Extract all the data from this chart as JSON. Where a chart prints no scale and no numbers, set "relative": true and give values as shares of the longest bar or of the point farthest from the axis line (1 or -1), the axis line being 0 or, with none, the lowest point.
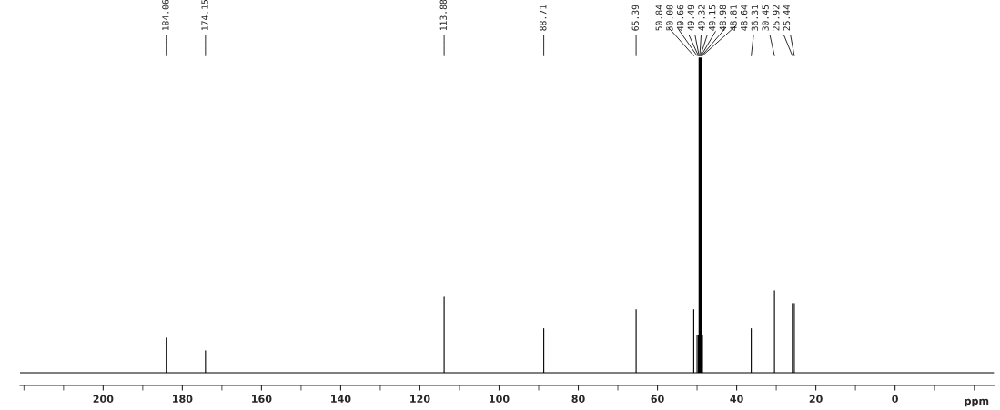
{
  "chart_data": {
    "type": "line",
    "relative": true,
    "xlabel": "ppm",
    "xlim": [
      221,
      -25
    ],
    "xticks": [
      200,
      180,
      160,
      140,
      120,
      100,
      80,
      60,
      40,
      20,
      0
    ],
    "tick_labels": "x",
    "grid": false,
    "legend": false,
    "marker": "none",
    "line_style": "solid",
    "series": [
      {
        "color": "#000000",
        "x": [
          221,
          184.06,
          184.06,
          184.06,
          174.15,
          174.15,
          174.15,
          113.88,
          113.88,
          113.88,
          88.71,
          88.71,
          88.71,
          65.39,
          65.39,
          65.39,
          50.84,
          50.84,
          50.84,
          50.0,
          50.0,
          50.0,
          49.66,
          49.66,
          49.66,
          49.49,
          49.49,
          49.49,
          49.32,
          49.32,
          49.32,
          49.15,
          49.15,
          49.15,
          48.98,
          48.98,
          48.98,
          48.81,
          48.81,
          48.81,
          48.64,
          48.64,
          48.64,
          36.31,
          36.31,
          36.31,
          30.45,
          30.45,
          30.45,
          25.92,
          25.92,
          25.92,
          25.44,
          25.44,
          25.44,
          -25
        ],
        "values": [
          0,
          0,
          0.11,
          0,
          0,
          0.07,
          0,
          0,
          0.24,
          0,
          0,
          0.14,
          0,
          0,
          0.2,
          0,
          0,
          0.2,
          0,
          0,
          0.12,
          0,
          0,
          0.12,
          0,
          0,
          1.0,
          0,
          0,
          1.0,
          0,
          0,
          1.0,
          0,
          0,
          1.0,
          0,
          0,
          1.0,
          0,
          0,
          0.12,
          0,
          0,
          0.14,
          0,
          0,
          0.26,
          0,
          0,
          0.22,
          0,
          0,
          0.22,
          0,
          0
        ]
      }
    ],
    "annotations": [
      "184.06",
      "174.15",
      "113.88",
      "88.71",
      "65.39",
      "50.84",
      "50.00",
      "49.66",
      "49.49",
      "49.32",
      "49.15",
      "48.98",
      "48.81",
      "48.64",
      "36.31",
      "30.45",
      "25.92",
      "25.44"
    ]
  }
}
